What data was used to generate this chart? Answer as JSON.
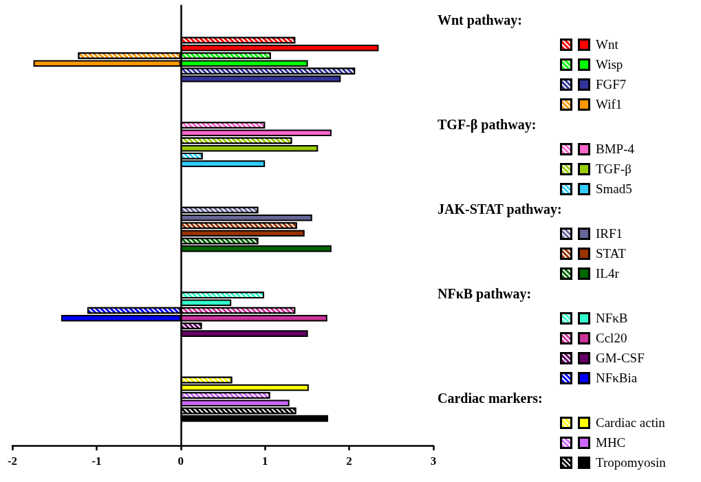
{
  "chart_data": {
    "type": "bar",
    "orientation": "horizontal",
    "stacked": true,
    "legend": "right",
    "annotations": [
      "Wnt pathway:",
      "TGF-β pathway:",
      "JAK-STAT pathway:",
      "NFκB pathway:",
      "Cardiac markers:"
    ],
    "categories": [
      null,
      null,
      null,
      null,
      null,
      null,
      null,
      null,
      null,
      null,
      null,
      null,
      null,
      null,
      null,
      null,
      null,
      null,
      null,
      null,
      null,
      null,
      null,
      null,
      null,
      null,
      null,
      null,
      null,
      null,
      null,
      null,
      null,
      null,
      null,
      null,
      null,
      null,
      null,
      null,
      null,
      null,
      null,
      null,
      null,
      null,
      null,
      null,
      null,
      null,
      null,
      null,
      null,
      null,
      null,
      null,
      null
    ],
    "xlim": [
      -2,
      3
    ],
    "xticks": [
      -2,
      -1,
      0,
      1,
      2,
      3
    ],
    "series": [
      {
        "name": "Wnt",
        "color": "#ff0000",
        "values": [
          null,
          null,
          null,
          null,
          1.36,
          2.35,
          null,
          null,
          null,
          null,
          null,
          null,
          null,
          null,
          null,
          null,
          null,
          null,
          null,
          null,
          null,
          null,
          null,
          null,
          null,
          null,
          null,
          null,
          null,
          null,
          null,
          null,
          null,
          null,
          null,
          null,
          null,
          null,
          null,
          null,
          null,
          null,
          null,
          null,
          null,
          null,
          null,
          null,
          null,
          null,
          null,
          null,
          null,
          null,
          null,
          null,
          null
        ]
      },
      {
        "name": "Wisp",
        "color": "#00ff00",
        "values": [
          null,
          null,
          null,
          null,
          null,
          null,
          1.07,
          1.51,
          null,
          null,
          null,
          null,
          null,
          null,
          null,
          null,
          null,
          null,
          null,
          null,
          null,
          null,
          null,
          null,
          null,
          null,
          null,
          null,
          null,
          null,
          null,
          null,
          null,
          null,
          null,
          null,
          null,
          null,
          null,
          null,
          null,
          null,
          null,
          null,
          null,
          null,
          null,
          null,
          null,
          null,
          null,
          null,
          null,
          null,
          null,
          null,
          null
        ]
      },
      {
        "name": "FGF7",
        "color": "#333399",
        "values": [
          null,
          null,
          null,
          null,
          null,
          null,
          null,
          null,
          2.07,
          1.9,
          null,
          null,
          null,
          null,
          null,
          null,
          null,
          null,
          null,
          null,
          null,
          null,
          null,
          null,
          null,
          null,
          null,
          null,
          null,
          null,
          null,
          null,
          null,
          null,
          null,
          null,
          null,
          null,
          null,
          null,
          null,
          null,
          null,
          null,
          null,
          null,
          null,
          null,
          null,
          null,
          null,
          null,
          null,
          null,
          null,
          null,
          null
        ]
      },
      {
        "name": "Wif1",
        "color": "#ff9900",
        "values": [
          null,
          null,
          null,
          null,
          null,
          null,
          -1.22,
          -1.75,
          null,
          null,
          null,
          null,
          null,
          null,
          null,
          null,
          null,
          null,
          null,
          null,
          null,
          null,
          null,
          null,
          null,
          null,
          null,
          null,
          null,
          null,
          null,
          null,
          null,
          null,
          null,
          null,
          null,
          null,
          null,
          null,
          null,
          null,
          null,
          null,
          null,
          null,
          null,
          null,
          null,
          null,
          null,
          null,
          null,
          null,
          null,
          null,
          null
        ]
      },
      {
        "name": "BMP-4",
        "color": "#ff66cc",
        "values": [
          null,
          null,
          null,
          null,
          null,
          null,
          null,
          null,
          null,
          null,
          null,
          null,
          null,
          null,
          null,
          1.0,
          1.79,
          null,
          null,
          null,
          null,
          null,
          null,
          null,
          null,
          null,
          null,
          null,
          null,
          null,
          null,
          null,
          null,
          null,
          null,
          null,
          null,
          null,
          null,
          null,
          null,
          null,
          null,
          null,
          null,
          null,
          null,
          null,
          null,
          null,
          null,
          null,
          null,
          null,
          null,
          null,
          null
        ]
      },
      {
        "name": "TGF-β",
        "color": "#99cc00",
        "values": [
          null,
          null,
          null,
          null,
          null,
          null,
          null,
          null,
          null,
          null,
          null,
          null,
          null,
          null,
          null,
          null,
          null,
          1.32,
          1.63,
          null,
          null,
          null,
          null,
          null,
          null,
          null,
          null,
          null,
          null,
          null,
          null,
          null,
          null,
          null,
          null,
          null,
          null,
          null,
          null,
          null,
          null,
          null,
          null,
          null,
          null,
          null,
          null,
          null,
          null,
          null,
          null,
          null,
          null,
          null,
          null,
          null,
          null
        ]
      },
      {
        "name": "Smad5",
        "color": "#33ccff",
        "values": [
          null,
          null,
          null,
          null,
          null,
          null,
          null,
          null,
          null,
          null,
          null,
          null,
          null,
          null,
          null,
          null,
          null,
          null,
          null,
          0.26,
          1.0,
          null,
          null,
          null,
          null,
          null,
          null,
          null,
          null,
          null,
          null,
          null,
          null,
          null,
          null,
          null,
          null,
          null,
          null,
          null,
          null,
          null,
          null,
          null,
          null,
          null,
          null,
          null,
          null,
          null,
          null,
          null,
          null,
          null,
          null,
          null,
          null
        ]
      },
      {
        "name": "IRF1",
        "color": "#666699",
        "values": [
          null,
          null,
          null,
          null,
          null,
          null,
          null,
          null,
          null,
          null,
          null,
          null,
          null,
          null,
          null,
          null,
          null,
          null,
          null,
          null,
          null,
          null,
          null,
          null,
          null,
          null,
          0.92,
          1.56,
          null,
          null,
          null,
          null,
          null,
          null,
          null,
          null,
          null,
          null,
          null,
          null,
          null,
          null,
          null,
          null,
          null,
          null,
          null,
          null,
          null,
          null,
          null,
          null,
          null,
          null,
          null,
          null,
          null
        ]
      },
      {
        "name": "STAT",
        "color": "#993300",
        "values": [
          null,
          null,
          null,
          null,
          null,
          null,
          null,
          null,
          null,
          null,
          null,
          null,
          null,
          null,
          null,
          null,
          null,
          null,
          null,
          null,
          null,
          null,
          null,
          null,
          null,
          null,
          null,
          null,
          1.38,
          1.47,
          null,
          null,
          null,
          null,
          null,
          null,
          null,
          null,
          null,
          null,
          null,
          null,
          null,
          null,
          null,
          null,
          null,
          null,
          null,
          null,
          null,
          null,
          null,
          null,
          null,
          null,
          null
        ]
      },
      {
        "name": "IL4r",
        "color": "#006600",
        "values": [
          null,
          null,
          null,
          null,
          null,
          null,
          null,
          null,
          null,
          null,
          null,
          null,
          null,
          null,
          null,
          null,
          null,
          null,
          null,
          null,
          null,
          null,
          null,
          null,
          null,
          null,
          null,
          null,
          null,
          null,
          0.92,
          1.79,
          null,
          null,
          null,
          null,
          null,
          null,
          null,
          null,
          null,
          null,
          null,
          null,
          null,
          null,
          null,
          null,
          null,
          null,
          null,
          null,
          null,
          null,
          null,
          null,
          null
        ]
      },
      {
        "name": "NFκB",
        "color": "#33ffcc",
        "values": [
          null,
          null,
          null,
          null,
          null,
          null,
          null,
          null,
          null,
          null,
          null,
          null,
          null,
          null,
          null,
          null,
          null,
          null,
          null,
          null,
          null,
          null,
          null,
          null,
          null,
          null,
          null,
          null,
          null,
          null,
          null,
          null,
          null,
          null,
          null,
          null,
          null,
          0.99,
          0.6,
          null,
          null,
          null,
          null,
          null,
          null,
          null,
          null,
          null,
          null,
          null,
          null,
          null,
          null,
          null,
          null,
          null,
          null
        ]
      },
      {
        "name": "Ccl20",
        "color": "#cc3399",
        "values": [
          null,
          null,
          null,
          null,
          null,
          null,
          null,
          null,
          null,
          null,
          null,
          null,
          null,
          null,
          null,
          null,
          null,
          null,
          null,
          null,
          null,
          null,
          null,
          null,
          null,
          null,
          null,
          null,
          null,
          null,
          null,
          null,
          null,
          null,
          null,
          null,
          null,
          null,
          null,
          1.36,
          1.74,
          null,
          null,
          null,
          null,
          null,
          null,
          null,
          null,
          null,
          null,
          null,
          null,
          null,
          null,
          null,
          null
        ]
      },
      {
        "name": "GM-CSF",
        "color": "#660066",
        "values": [
          null,
          null,
          null,
          null,
          null,
          null,
          null,
          null,
          null,
          null,
          null,
          null,
          null,
          null,
          null,
          null,
          null,
          null,
          null,
          null,
          null,
          null,
          null,
          null,
          null,
          null,
          null,
          null,
          null,
          null,
          null,
          null,
          null,
          null,
          null,
          null,
          null,
          null,
          null,
          null,
          null,
          0.25,
          1.51,
          null,
          null,
          null,
          null,
          null,
          null,
          null,
          null,
          null,
          null,
          null,
          null,
          null,
          null
        ]
      },
      {
        "name": "NFκBia",
        "color": "#0000ff",
        "values": [
          null,
          null,
          null,
          null,
          null,
          null,
          null,
          null,
          null,
          null,
          null,
          null,
          null,
          null,
          null,
          null,
          null,
          null,
          null,
          null,
          null,
          null,
          null,
          null,
          null,
          null,
          null,
          null,
          null,
          null,
          null,
          null,
          null,
          null,
          null,
          null,
          null,
          null,
          null,
          -1.11,
          -1.42,
          null,
          null,
          null,
          null,
          null,
          null,
          null,
          null,
          null,
          null,
          null,
          null,
          null,
          null,
          null,
          null
        ]
      },
      {
        "name": "Cardiac actin",
        "color": "#ffff00",
        "values": [
          null,
          null,
          null,
          null,
          null,
          null,
          null,
          null,
          null,
          null,
          null,
          null,
          null,
          null,
          null,
          null,
          null,
          null,
          null,
          null,
          null,
          null,
          null,
          null,
          null,
          null,
          null,
          null,
          null,
          null,
          null,
          null,
          null,
          null,
          null,
          null,
          null,
          null,
          null,
          null,
          null,
          null,
          null,
          null,
          null,
          null,
          null,
          null,
          0.61,
          1.52,
          null,
          null,
          null,
          null,
          null,
          null,
          null
        ]
      },
      {
        "name": "MHC",
        "color": "#cc66ff",
        "values": [
          null,
          null,
          null,
          null,
          null,
          null,
          null,
          null,
          null,
          null,
          null,
          null,
          null,
          null,
          null,
          null,
          null,
          null,
          null,
          null,
          null,
          null,
          null,
          null,
          null,
          null,
          null,
          null,
          null,
          null,
          null,
          null,
          null,
          null,
          null,
          null,
          null,
          null,
          null,
          null,
          null,
          null,
          null,
          null,
          null,
          null,
          null,
          null,
          null,
          null,
          1.06,
          1.29,
          null,
          null,
          null,
          null,
          null
        ]
      },
      {
        "name": "Tropomyosin",
        "color": "#000000",
        "values": [
          null,
          null,
          null,
          null,
          null,
          null,
          null,
          null,
          null,
          null,
          null,
          null,
          null,
          null,
          null,
          null,
          null,
          null,
          null,
          null,
          null,
          null,
          null,
          null,
          null,
          null,
          null,
          null,
          null,
          null,
          null,
          null,
          null,
          null,
          null,
          null,
          null,
          null,
          null,
          null,
          null,
          null,
          null,
          null,
          null,
          null,
          null,
          null,
          null,
          null,
          null,
          null,
          1.37,
          1.75,
          null,
          null,
          null
        ]
      }
    ]
  }
}
